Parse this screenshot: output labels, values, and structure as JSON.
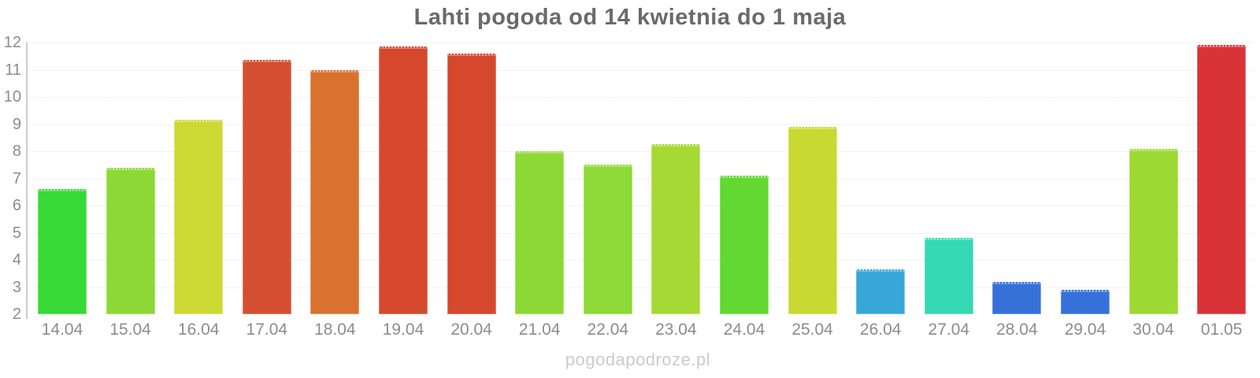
{
  "title": "Lahti pogoda od 14 kwietnia do 1 maja",
  "watermark": "pogodapodroze.pl",
  "colors": {
    "background": "#ffffff",
    "title_text": "#6a6a6a",
    "axis_label_text": "#8c8c8c",
    "gridline": "#e7e7e7",
    "axis_line": "#cccccc",
    "watermark_text": "#cbcbcb"
  },
  "chart_data": {
    "type": "bar",
    "title": "Lahti pogoda od 14 kwietnia do 1 maja",
    "xlabel": "",
    "ylabel": "",
    "categories": [
      "14.04",
      "15.04",
      "16.04",
      "17.04",
      "18.04",
      "19.04",
      "20.04",
      "21.04",
      "22.04",
      "23.04",
      "24.04",
      "25.04",
      "26.04",
      "27.04",
      "28.04",
      "29.04",
      "30.04",
      "01.05"
    ],
    "values": [
      6.6,
      7.4,
      9.15,
      11.35,
      11.0,
      11.85,
      11.6,
      8.0,
      7.5,
      8.25,
      7.1,
      8.9,
      3.65,
      4.8,
      3.2,
      2.9,
      8.1,
      11.9
    ],
    "bar_colors": [
      "#36d936",
      "#8cd935",
      "#cdd933",
      "#d54e32",
      "#d9722f",
      "#d5482e",
      "#d5482e",
      "#8cd935",
      "#8dd935",
      "#a6d934",
      "#62d932",
      "#c9d932",
      "#37a7d9",
      "#35d9b4",
      "#3671d9",
      "#3671d9",
      "#9dd933",
      "#d93338"
    ],
    "ylim": [
      2,
      12
    ],
    "yticks": [
      2,
      3,
      4,
      5,
      6,
      7,
      8,
      9,
      10,
      11,
      12
    ],
    "grid": true,
    "legend": false
  }
}
